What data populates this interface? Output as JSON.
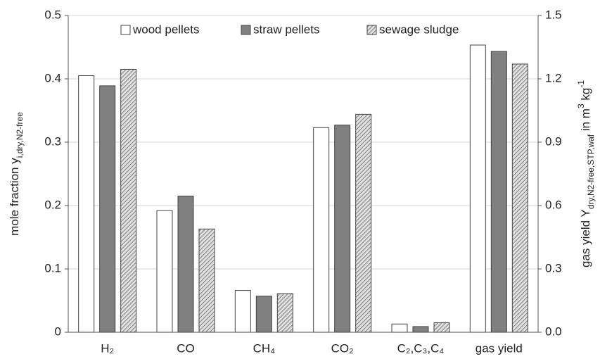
{
  "chart_data": {
    "type": "bar",
    "categories": [
      "H₂",
      "CO",
      "CH₄",
      "CO₂",
      "C₂,C₃,C₄",
      "gas yield"
    ],
    "axis_by_category": [
      "y",
      "y",
      "y",
      "y",
      "y",
      "y2"
    ],
    "series": [
      {
        "name": "wood pellets",
        "color": "#ffffff",
        "values": [
          0.405,
          0.192,
          0.066,
          0.323,
          0.013,
          1.36
        ]
      },
      {
        "name": "straw pellets",
        "color": "#808080",
        "values": [
          0.389,
          0.215,
          0.057,
          0.327,
          0.009,
          1.33
        ]
      },
      {
        "name": "sewage sludge",
        "color": "#bdbdbd",
        "pattern": "hatch",
        "values": [
          0.415,
          0.163,
          0.061,
          0.344,
          0.015,
          1.27
        ]
      }
    ],
    "ylabel": [
      {
        "text": "mole fraction y"
      },
      {
        "text": "i,dry,N2-free",
        "style": "sub"
      }
    ],
    "y2label": [
      {
        "text": "gas yield Y"
      },
      {
        "text": "dry,N2-free,STP,waf",
        "style": "sub"
      },
      {
        "text": " in m"
      },
      {
        "text": "3",
        "style": "sup"
      },
      {
        "text": " kg"
      },
      {
        "text": "-1",
        "style": "sup"
      }
    ],
    "ylim": [
      0,
      0.5
    ],
    "yticks": [
      0,
      0.1,
      0.2,
      0.3,
      0.4,
      0.5
    ],
    "y2lim": [
      0,
      1.5
    ],
    "y2ticks": [
      {
        "value": 0,
        "label": "0.0"
      },
      0.3,
      0.6,
      0.9,
      1.2,
      1.5
    ],
    "grid": true,
    "legend": "top"
  }
}
